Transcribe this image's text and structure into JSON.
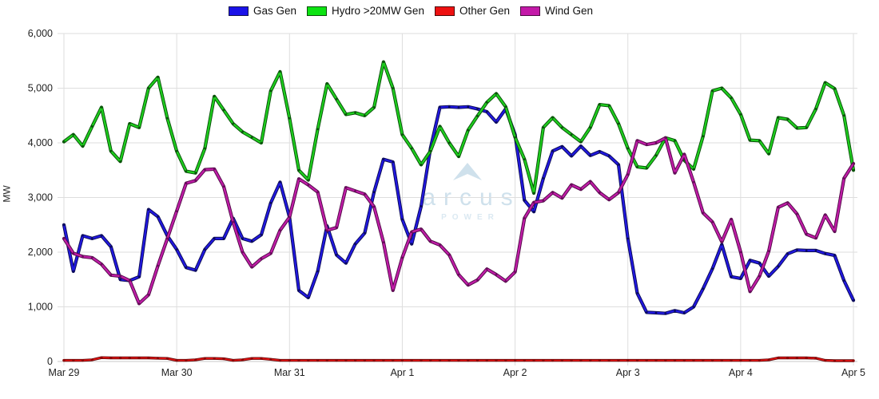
{
  "legend": {
    "items": [
      {
        "label": "Gas Gen",
        "color": "#1a12e8",
        "border": "#15154d"
      },
      {
        "label": "Hydro >20MW Gen",
        "color": "#0ce312",
        "border": "#0a4d0a"
      },
      {
        "label": "Other Gen",
        "color": "#ee1111",
        "border": "#4d0a0a"
      },
      {
        "label": "Wind Gen",
        "color": "#c319a8",
        "border": "#4d0a42"
      }
    ]
  },
  "y_axis": {
    "title": "MW",
    "ticks": [
      "0",
      "1,000",
      "2,000",
      "3,000",
      "4,000",
      "5,000",
      "6,000"
    ],
    "min": 0,
    "max": 6000
  },
  "x_axis": {
    "ticks": [
      "Mar 29",
      "Mar 30",
      "Mar 31",
      "Apr 1",
      "Apr 2",
      "Apr 3",
      "Apr 4",
      "Apr 5"
    ]
  },
  "watermark": {
    "brand": "arcus",
    "sub": "POWER",
    "color": "#cfe1ec",
    "sub_color": "#dbe9f2"
  },
  "chart_data": {
    "type": "line",
    "title": "",
    "ylabel": "MW",
    "ylim": [
      0,
      6000
    ],
    "grid": true,
    "legend_position": "top",
    "x_start": "Mar 29 00:00",
    "x_end": "Apr 5 00:00",
    "interval_hours": 2,
    "x_tick_labels": [
      "Mar 29",
      "Mar 30",
      "Mar 31",
      "Apr 1",
      "Apr 2",
      "Apr 3",
      "Apr 4",
      "Apr 5"
    ],
    "series": [
      {
        "name": "Gas Gen",
        "color": "#2118e0",
        "outline": "#0a0a50",
        "marker": "#0a0a66",
        "values": [
          2500,
          1650,
          2300,
          2250,
          2300,
          2100,
          1500,
          1480,
          1550,
          2780,
          2650,
          2300,
          2050,
          1720,
          1670,
          2050,
          2250,
          2250,
          2620,
          2250,
          2200,
          2320,
          2900,
          3280,
          2640,
          1300,
          1170,
          1650,
          2480,
          1950,
          1800,
          2150,
          2350,
          3100,
          3700,
          3650,
          2600,
          2150,
          2840,
          3900,
          4650,
          4660,
          4650,
          4660,
          4620,
          4570,
          4380,
          4620,
          4150,
          2950,
          2740,
          3350,
          3850,
          3930,
          3760,
          3940,
          3770,
          3840,
          3760,
          3600,
          2250,
          1250,
          900,
          890,
          880,
          930,
          890,
          1000,
          1330,
          1700,
          2140,
          1550,
          1520,
          1850,
          1800,
          1560,
          1740,
          1970,
          2040,
          2030,
          2030,
          1975,
          1940,
          1480,
          1120
        ]
      },
      {
        "name": "Hydro >20MW Gen",
        "color": "#1ecc1e",
        "outline": "#064d06",
        "marker": "#0a550a",
        "values": [
          4020,
          4150,
          3940,
          4300,
          4650,
          3850,
          3660,
          4350,
          4280,
          5000,
          5200,
          4450,
          3850,
          3480,
          3450,
          3900,
          4850,
          4600,
          4350,
          4200,
          4100,
          4000,
          4950,
          5300,
          4450,
          3500,
          3320,
          4250,
          5080,
          4800,
          4520,
          4550,
          4500,
          4650,
          5480,
          5000,
          4150,
          3900,
          3600,
          3850,
          4300,
          4000,
          3750,
          4230,
          4490,
          4740,
          4900,
          4660,
          4100,
          3700,
          3080,
          4280,
          4460,
          4280,
          4150,
          4020,
          4280,
          4700,
          4680,
          4350,
          3900,
          3560,
          3540,
          3770,
          4090,
          4040,
          3680,
          3520,
          4120,
          4950,
          5000,
          4820,
          4520,
          4050,
          4040,
          3800,
          4460,
          4430,
          4270,
          4280,
          4620,
          5100,
          4990,
          4500,
          3500
        ]
      },
      {
        "name": "Other Gen",
        "color": "#e61212",
        "outline": "#5a0505",
        "marker": "#8c0404",
        "values": [
          20,
          20,
          20,
          30,
          70,
          65,
          65,
          65,
          65,
          65,
          60,
          55,
          20,
          20,
          30,
          55,
          55,
          50,
          20,
          30,
          55,
          55,
          40,
          20,
          20,
          20,
          20,
          20,
          20,
          20,
          20,
          20,
          20,
          20,
          20,
          20,
          20,
          20,
          20,
          20,
          20,
          20,
          20,
          20,
          20,
          20,
          20,
          20,
          20,
          20,
          20,
          20,
          20,
          20,
          20,
          20,
          20,
          20,
          20,
          20,
          20,
          20,
          20,
          20,
          20,
          20,
          20,
          20,
          20,
          20,
          20,
          20,
          20,
          20,
          20,
          30,
          65,
          65,
          65,
          65,
          60,
          20,
          15,
          15,
          15
        ]
      },
      {
        "name": "Wind Gen",
        "color": "#bf1da6",
        "outline": "#4d0844",
        "marker": "#6e0a60",
        "values": [
          2250,
          1980,
          1920,
          1900,
          1780,
          1580,
          1560,
          1480,
          1060,
          1220,
          1750,
          2250,
          2750,
          3260,
          3310,
          3510,
          3520,
          3200,
          2550,
          2000,
          1730,
          1880,
          1980,
          2400,
          2640,
          3340,
          3230,
          3100,
          2400,
          2450,
          3180,
          3120,
          3060,
          2830,
          2180,
          1300,
          1900,
          2370,
          2420,
          2200,
          2130,
          1950,
          1590,
          1400,
          1490,
          1690,
          1590,
          1470,
          1640,
          2620,
          2910,
          2940,
          3090,
          2990,
          3230,
          3150,
          3290,
          3090,
          2960,
          3090,
          3420,
          4040,
          3970,
          4000,
          4090,
          3450,
          3790,
          3280,
          2720,
          2550,
          2190,
          2600,
          2000,
          1280,
          1560,
          2020,
          2820,
          2900,
          2700,
          2330,
          2260,
          2680,
          2380,
          3350,
          3620
        ]
      }
    ]
  }
}
